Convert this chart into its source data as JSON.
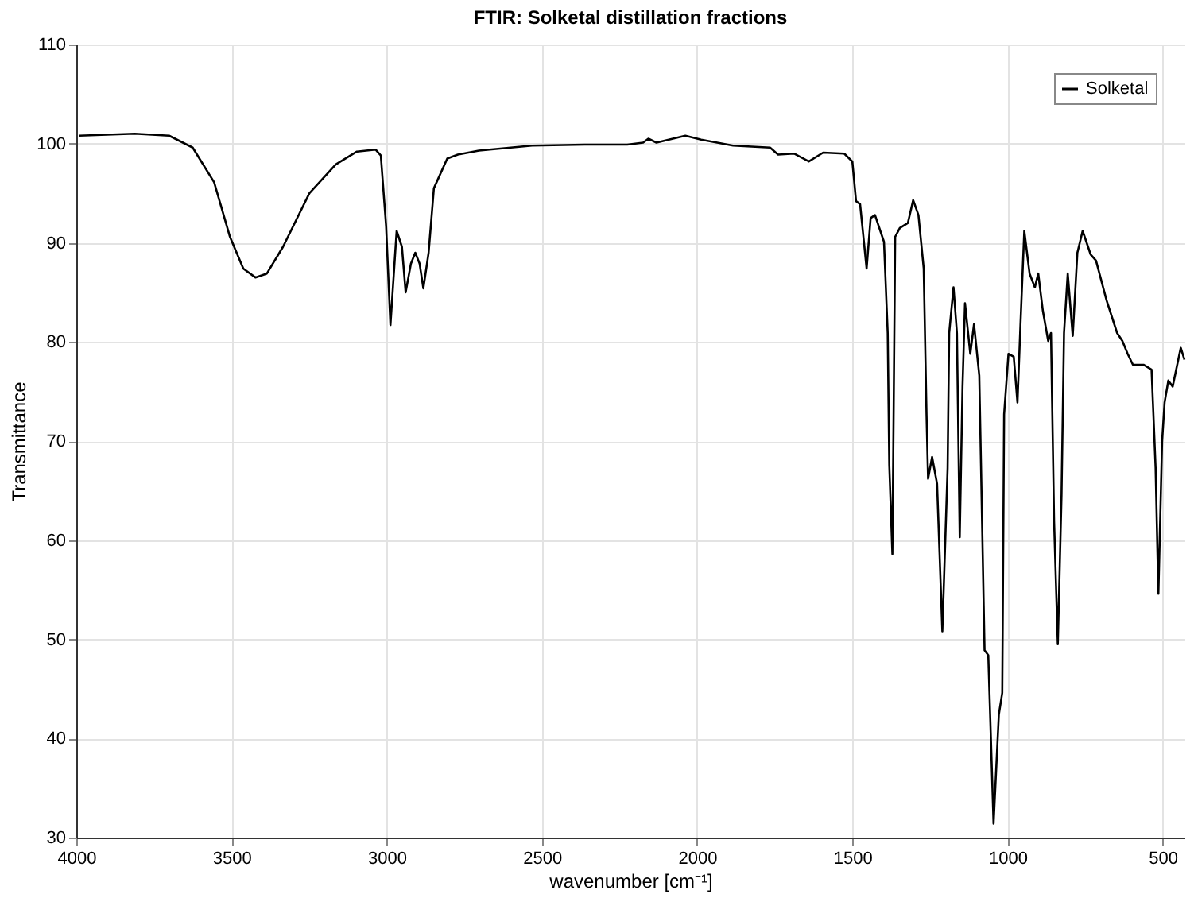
{
  "chart_data": {
    "type": "line",
    "title": "FTIR: Solketal distillation fractions",
    "xlabel": "wavenumber [cm⁻¹]",
    "ylabel": "Transmittance",
    "x": [
      3991,
      3812,
      3701,
      3625,
      3556,
      3505,
      3462,
      3423,
      3386,
      3334,
      3249,
      3164,
      3096,
      3036,
      3019,
      3002,
      2988,
      2968,
      2951,
      2939,
      2922,
      2908,
      2894,
      2882,
      2865,
      2848,
      2805,
      2771,
      2703,
      2532,
      2362,
      2225,
      2174,
      2157,
      2131,
      2038,
      1987,
      1884,
      1765,
      1739,
      1688,
      1640,
      1594,
      1526,
      1500,
      1488,
      1475,
      1454,
      1441,
      1427,
      1398,
      1386,
      1381,
      1371,
      1362,
      1347,
      1321,
      1304,
      1287,
      1270,
      1261,
      1256,
      1243,
      1227,
      1210,
      1193,
      1188,
      1174,
      1163,
      1154,
      1145,
      1137,
      1120,
      1108,
      1091,
      1074,
      1062,
      1045,
      1028,
      1017,
      1011,
      997,
      980,
      968,
      958,
      946,
      929,
      912,
      901,
      886,
      869,
      860,
      850,
      838,
      826,
      818,
      806,
      790,
      775,
      758,
      732,
      715,
      681,
      647,
      630,
      613,
      596,
      562,
      536,
      523,
      514,
      502,
      494,
      482,
      468,
      442,
      430
    ],
    "series": [
      {
        "name": "Solketal",
        "color": "#000000",
        "values": [
          100.8,
          101.0,
          100.8,
          99.6,
          96.1,
          90.6,
          87.4,
          86.5,
          86.9,
          89.6,
          95.0,
          97.9,
          99.2,
          99.4,
          98.8,
          91.7,
          81.7,
          91.2,
          89.6,
          85.0,
          87.9,
          89.0,
          87.9,
          85.4,
          89.0,
          95.5,
          98.5,
          98.9,
          99.3,
          99.8,
          99.9,
          99.9,
          100.1,
          100.5,
          100.1,
          100.8,
          100.4,
          99.8,
          99.6,
          98.9,
          99.0,
          98.2,
          99.1,
          99.0,
          98.2,
          94.2,
          93.9,
          87.4,
          92.5,
          92.8,
          90.1,
          80.9,
          67.6,
          58.6,
          90.6,
          91.5,
          92.0,
          94.3,
          92.8,
          87.4,
          72.7,
          66.2,
          68.4,
          65.7,
          50.8,
          67.3,
          80.9,
          85.5,
          80.9,
          60.3,
          75.5,
          83.9,
          78.8,
          81.8,
          76.6,
          48.9,
          48.4,
          31.4,
          42.4,
          44.6,
          72.7,
          78.8,
          78.5,
          73.9,
          82.0,
          91.2,
          86.9,
          85.5,
          86.9,
          83.1,
          80.1,
          80.9,
          61.9,
          49.5,
          64.6,
          80.9,
          86.9,
          80.6,
          89.0,
          91.2,
          88.8,
          88.2,
          84.2,
          80.9,
          80.1,
          78.8,
          77.7,
          77.7,
          77.2,
          67.3,
          54.6,
          70.0,
          73.9,
          76.1,
          75.5,
          79.4,
          78.2
        ]
      }
    ],
    "xlim": [
      4000,
      430
    ],
    "ylim": [
      30,
      110
    ],
    "xticks": [
      4000,
      3500,
      3000,
      2500,
      2000,
      1500,
      1000,
      500
    ],
    "yticks": [
      30,
      40,
      50,
      60,
      70,
      80,
      90,
      100,
      110
    ],
    "grid": true,
    "legend": "top right",
    "line_style": "solid"
  }
}
